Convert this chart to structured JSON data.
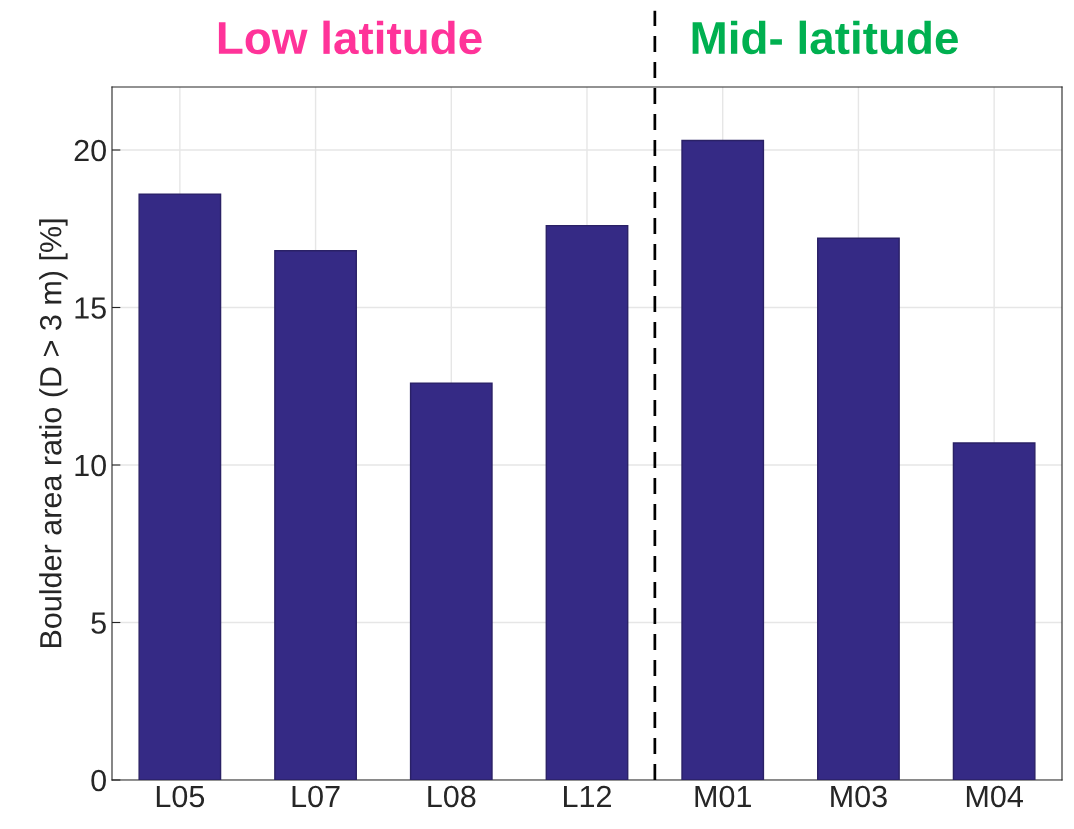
{
  "chart_data": {
    "type": "bar",
    "ylabel": "Boulder area ratio (D > 3 m) [%]",
    "categories": [
      "L05",
      "L07",
      "L08",
      "L12",
      "M01",
      "M03",
      "M04"
    ],
    "values": [
      18.6,
      16.8,
      12.6,
      17.6,
      20.3,
      17.2,
      10.7
    ],
    "color": "#352a85",
    "ylim": [
      0,
      22
    ],
    "yticks": [
      0,
      5,
      10,
      15,
      20
    ],
    "grid": true,
    "annotations": [
      "Low latitude",
      "Mid- latitude"
    ]
  }
}
